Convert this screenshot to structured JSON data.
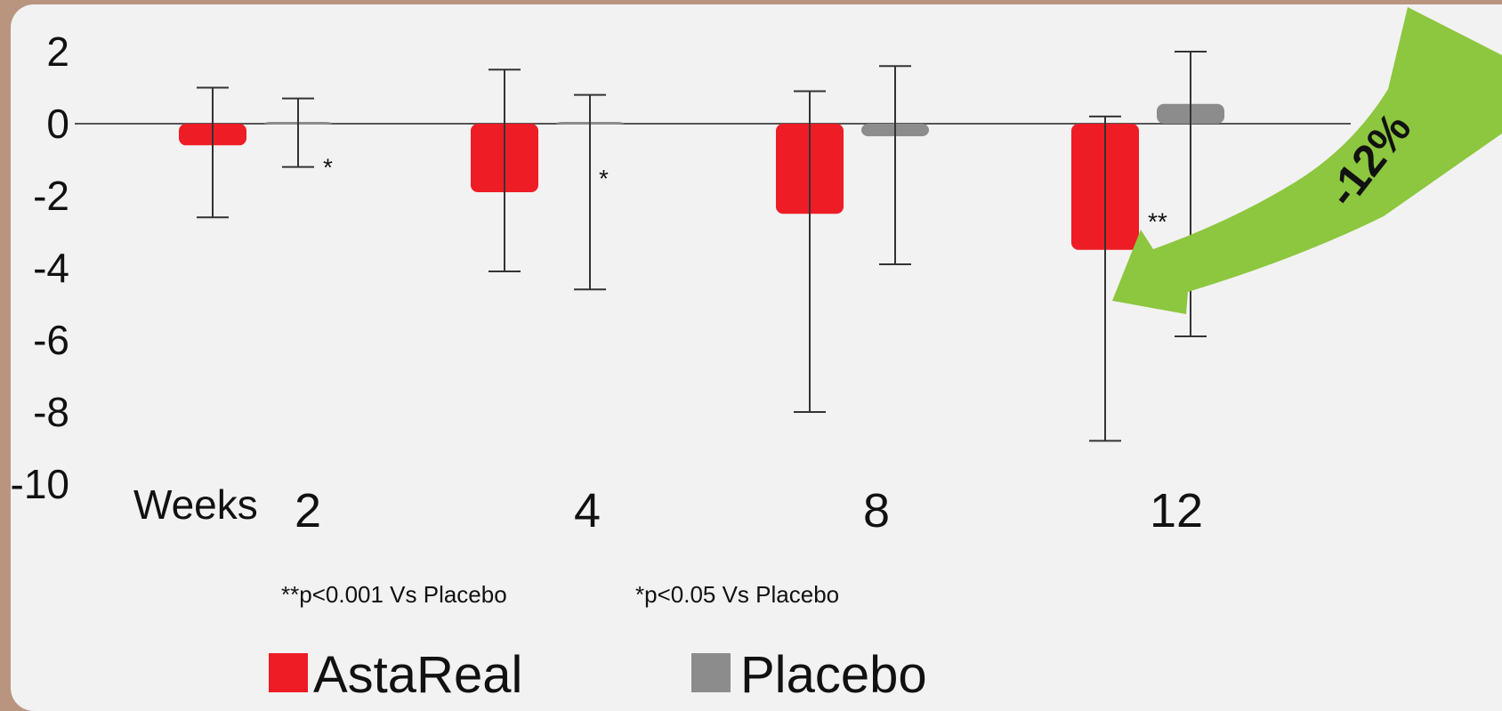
{
  "chart_data": {
    "type": "bar",
    "title": "",
    "xlabel": "Weeks",
    "ylabel": "",
    "ylim": [
      -10,
      2
    ],
    "yticks": [
      2,
      0,
      -2,
      -4,
      -6,
      -8,
      -10
    ],
    "categories": [
      "2",
      "4",
      "8",
      "12"
    ],
    "series": [
      {
        "name": "AstaReal",
        "color": "#ee1c24",
        "values": [
          -0.6,
          -1.9,
          -2.5,
          -3.5
        ],
        "err_low": [
          -2.6,
          -4.1,
          -8.0,
          -8.8
        ],
        "err_high": [
          1.0,
          1.5,
          0.9,
          0.2
        ]
      },
      {
        "name": "Placebo",
        "color": "#8c8c8c",
        "values": [
          0.05,
          0.05,
          -0.35,
          0.55
        ],
        "err_low": [
          -1.2,
          -4.6,
          -3.9,
          -5.9
        ],
        "err_high": [
          0.7,
          0.8,
          1.6,
          2.0
        ]
      }
    ],
    "significance": [
      {
        "category": "2",
        "label": "*"
      },
      {
        "category": "4",
        "label": "*"
      },
      {
        "category": "12",
        "label": "**"
      }
    ],
    "notes": [
      "**p<0.001 Vs Placebo",
      "*p<0.05 Vs Placebo"
    ],
    "callout": {
      "label": "-12%",
      "color": "#8dc63f"
    },
    "grid": false,
    "legend_position": "bottom"
  }
}
